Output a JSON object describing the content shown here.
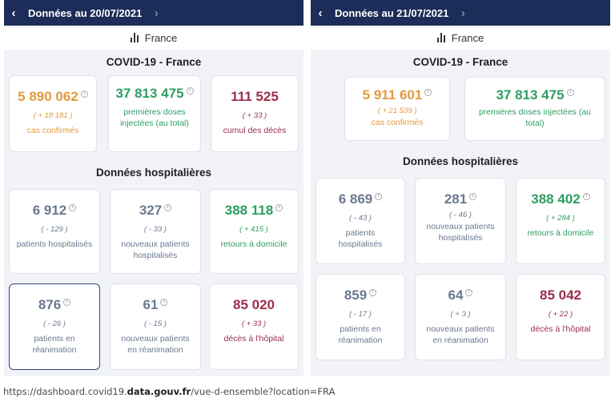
{
  "left": {
    "date_label": "Données au 20/07/2021",
    "region": "France",
    "covid_title": "COVID-19 - France",
    "hosp_title": "Données hospitalières",
    "top_cards": [
      {
        "value": "5 890 062",
        "delta": "( + 18 181 )",
        "label": "cas confirmés"
      },
      {
        "value": "37 813 475",
        "delta": "",
        "label": "premières doses injectées (au total)"
      },
      {
        "value": "111 525",
        "delta": "( + 33 )",
        "label": "cumul des décès"
      }
    ],
    "hosp_cards": [
      {
        "value": "6 912",
        "delta": "( - 129 )",
        "label": "patients hospitalisés"
      },
      {
        "value": "327",
        "delta": "( - 33 )",
        "label": "nouveaux patients hospitalisés"
      },
      {
        "value": "388 118",
        "delta": "( + 415 )",
        "label": "retours à domicile"
      },
      {
        "value": "876",
        "delta": "( - 26 )",
        "label": "patients en réanimation"
      },
      {
        "value": "61",
        "delta": "( - 15 )",
        "label": "nouveaux patients en réanimation"
      },
      {
        "value": "85 020",
        "delta": "( + 33 )",
        "label": "décès à l'hôpital"
      }
    ]
  },
  "right": {
    "date_label": "Données au 21/07/2021",
    "region": "France",
    "covid_title": "COVID-19 - France",
    "hosp_title": "Données hospitalières",
    "top_cards": [
      {
        "value": "5 911 601",
        "delta": "( + 21 539 )",
        "label": "cas confirmés"
      },
      {
        "value": "37 813 475",
        "delta": "",
        "label": "premières doses injectées (au total)"
      }
    ],
    "hosp_cards": [
      {
        "value": "6 869",
        "delta": "( - 43 )",
        "label": "patients hospitalisés"
      },
      {
        "value": "281",
        "delta": "( - 46 )",
        "label": "nouveaux patients hospitalisés"
      },
      {
        "value": "388 402",
        "delta": "( + 284 )",
        "label": "retours à domicile"
      },
      {
        "value": "859",
        "delta": "( - 17 )",
        "label": "patients en réanimation"
      },
      {
        "value": "64",
        "delta": "( + 3 )",
        "label": "nouveaux patients en réanimation"
      },
      {
        "value": "85 042",
        "delta": "( + 22 )",
        "label": "décès à l'hôpital"
      }
    ]
  },
  "url": {
    "prefix": "https://dashboard.covid19.",
    "domain": "data.gouv.fr",
    "suffix": "/vue-d-ensemble?location=FRA"
  },
  "colors": {
    "header_bg": "#1c2d59",
    "orange": "#e39a3e",
    "green": "#2e9e62",
    "darkred": "#9b2f4a",
    "grey": "#6b7890"
  }
}
